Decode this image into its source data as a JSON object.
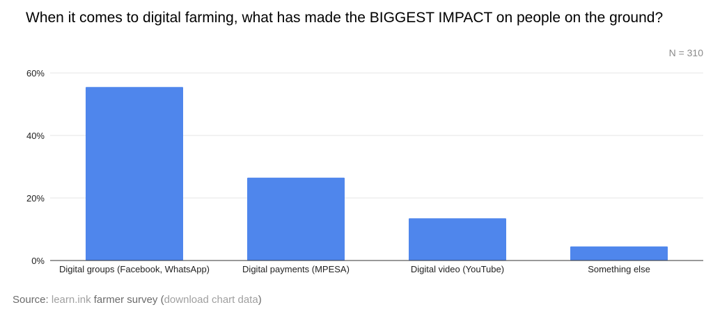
{
  "chart_data": {
    "type": "bar",
    "title": "When it comes to digital farming, what has made the BIGGEST IMPACT on people on the ground?",
    "annotation": "N = 310",
    "categories": [
      "Digital groups (Facebook, WhatsApp)",
      "Digital payments (MPESA)",
      "Digital video (YouTube)",
      "Something else"
    ],
    "values": [
      55.5,
      26.5,
      13.5,
      4.5
    ],
    "ylim": [
      0,
      60
    ],
    "yticks": [
      0,
      20,
      40,
      60
    ],
    "ytick_labels": [
      "0%",
      "20%",
      "40%",
      "60%"
    ],
    "xlabel": "",
    "ylabel": "",
    "grid": true,
    "legend": "none",
    "bar_color": "#4f86ec"
  },
  "footer": {
    "source_prefix": "Source: ",
    "source_link": "learn.ink",
    "source_middle": " farmer survey (",
    "download_link": "download chart data",
    "source_suffix": ")"
  }
}
